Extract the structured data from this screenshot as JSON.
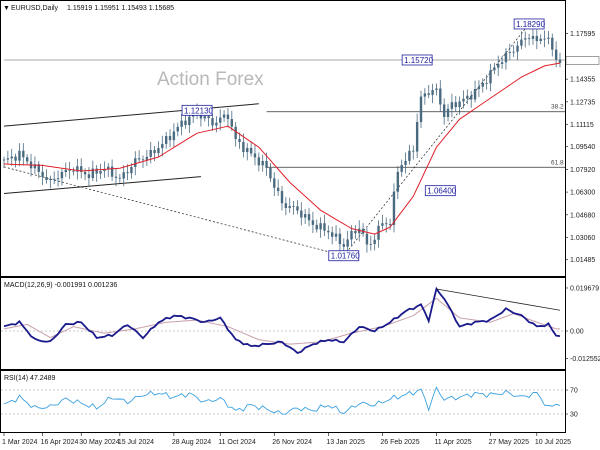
{
  "chart_data": {
    "type": "line",
    "header": {
      "symbol": "EURUSD,Daily",
      "ohlc": "1.15919 1.15951 1.15493 1.15685"
    },
    "watermark": "Action Forex",
    "price_panel": {
      "y_ticks": [
        "1.17595",
        "1.15685",
        "1.14355",
        "1.12735",
        "1.11115",
        "1.09540",
        "1.07920",
        "1.06300",
        "1.04680",
        "1.03060",
        "1.01485"
      ],
      "ylim": [
        1.006,
        1.19
      ],
      "current_price": "1.15685",
      "annotations": [
        {
          "label": "1.18290",
          "price": 1.1829,
          "date_index": 136
        },
        {
          "label": "1.15720",
          "price": 1.1572,
          "date_index": 107
        },
        {
          "label": "1.12130",
          "price": 1.1213,
          "date_index": 50
        },
        {
          "label": "1.06400",
          "price": 1.064,
          "date_index": 113
        },
        {
          "label": "1.01760",
          "price": 1.0176,
          "date_index": 88
        }
      ],
      "fib_levels": [
        {
          "label": "38.2",
          "price": 1.1203
        },
        {
          "label": "61.8",
          "price": 1.0807
        }
      ],
      "series": [
        {
          "name": "price",
          "close_anchors": [
            [
              0,
              1.085
            ],
            [
              4,
              1.09
            ],
            [
              8,
              1.08
            ],
            [
              12,
              1.07
            ],
            [
              14,
              1.075
            ],
            [
              18,
              1.08
            ],
            [
              22,
              1.075
            ],
            [
              26,
              1.08
            ],
            [
              30,
              1.072
            ],
            [
              34,
              1.085
            ],
            [
              38,
              1.09
            ],
            [
              42,
              1.1
            ],
            [
              46,
              1.112
            ],
            [
              50,
              1.12
            ],
            [
              54,
              1.112
            ],
            [
              58,
              1.118
            ],
            [
              60,
              1.1
            ],
            [
              64,
              1.09
            ],
            [
              68,
              1.08
            ],
            [
              72,
              1.055
            ],
            [
              76,
              1.05
            ],
            [
              80,
              1.04
            ],
            [
              84,
              1.035
            ],
            [
              88,
              1.025
            ],
            [
              90,
              1.033
            ],
            [
              92,
              1.038
            ],
            [
              94,
              1.025
            ],
            [
              96,
              1.03
            ],
            [
              98,
              1.042
            ],
            [
              100,
              1.04
            ],
            [
              102,
              1.08
            ],
            [
              104,
              1.085
            ],
            [
              106,
              1.095
            ],
            [
              108,
              1.13
            ],
            [
              110,
              1.135
            ],
            [
              112,
              1.135
            ],
            [
              114,
              1.118
            ],
            [
              116,
              1.125
            ],
            [
              120,
              1.13
            ],
            [
              124,
              1.14
            ],
            [
              128,
              1.155
            ],
            [
              132,
              1.165
            ],
            [
              136,
              1.175
            ],
            [
              138,
              1.17
            ],
            [
              140,
              1.175
            ],
            [
              142,
              1.165
            ],
            [
              143,
              1.158
            ],
            [
              144,
              1.157
            ]
          ]
        },
        {
          "name": "MA",
          "close_anchors": [
            [
              0,
              1.083
            ],
            [
              10,
              1.082
            ],
            [
              20,
              1.078
            ],
            [
              30,
              1.08
            ],
            [
              40,
              1.088
            ],
            [
              50,
              1.105
            ],
            [
              58,
              1.11
            ],
            [
              66,
              1.095
            ],
            [
              74,
              1.07
            ],
            [
              82,
              1.05
            ],
            [
              90,
              1.037
            ],
            [
              96,
              1.033
            ],
            [
              100,
              1.038
            ],
            [
              106,
              1.06
            ],
            [
              112,
              1.095
            ],
            [
              118,
              1.115
            ],
            [
              126,
              1.13
            ],
            [
              134,
              1.145
            ],
            [
              140,
              1.153
            ],
            [
              144,
              1.155
            ]
          ]
        }
      ]
    },
    "macd_panel": {
      "label": "MACD(12,26,9) -0.001991 0.001236",
      "y_ticks": [
        "0.019679",
        "0.00",
        "-0.012552"
      ],
      "ylim": [
        -0.016,
        0.0215
      ],
      "series": [
        {
          "name": "MACD",
          "anchors": [
            [
              0,
              0.002
            ],
            [
              4,
              0.004
            ],
            [
              8,
              -0.004
            ],
            [
              12,
              -0.005
            ],
            [
              16,
              0.003
            ],
            [
              20,
              0.004
            ],
            [
              24,
              -0.003
            ],
            [
              28,
              -0.002
            ],
            [
              32,
              0.003
            ],
            [
              36,
              -0.003
            ],
            [
              40,
              0.004
            ],
            [
              44,
              0.007
            ],
            [
              48,
              0.006
            ],
            [
              52,
              0.004
            ],
            [
              56,
              0.006
            ],
            [
              60,
              -0.004
            ],
            [
              64,
              -0.007
            ],
            [
              68,
              -0.006
            ],
            [
              72,
              -0.005
            ],
            [
              76,
              -0.01
            ],
            [
              80,
              -0.006
            ],
            [
              84,
              -0.004
            ],
            [
              88,
              -0.005
            ],
            [
              92,
              0.002
            ],
            [
              96,
              0.0
            ],
            [
              100,
              0.004
            ],
            [
              104,
              0.009
            ],
            [
              108,
              0.012
            ],
            [
              110,
              0.005
            ],
            [
              112,
              0.019
            ],
            [
              114,
              0.015
            ],
            [
              118,
              0.002
            ],
            [
              122,
              0.004
            ],
            [
              126,
              0.005
            ],
            [
              130,
              0.01
            ],
            [
              134,
              0.007
            ],
            [
              138,
              0.002
            ],
            [
              141,
              0.003
            ],
            [
              143,
              -0.002
            ]
          ]
        },
        {
          "name": "Signal",
          "anchors": [
            [
              0,
              0.001
            ],
            [
              6,
              0.003
            ],
            [
              12,
              -0.003
            ],
            [
              18,
              0.002
            ],
            [
              26,
              -0.001
            ],
            [
              34,
              0.001
            ],
            [
              42,
              0.004
            ],
            [
              50,
              0.005
            ],
            [
              58,
              0.002
            ],
            [
              66,
              -0.004
            ],
            [
              74,
              -0.006
            ],
            [
              82,
              -0.005
            ],
            [
              90,
              -0.001
            ],
            [
              98,
              0.002
            ],
            [
              106,
              0.007
            ],
            [
              112,
              0.015
            ],
            [
              118,
              0.006
            ],
            [
              126,
              0.004
            ],
            [
              132,
              0.008
            ],
            [
              138,
              0.004
            ],
            [
              143,
              0.001
            ]
          ]
        }
      ]
    },
    "rsi_panel": {
      "label": "RSI(14) 47.2489",
      "y_ticks": [
        "70",
        "30"
      ],
      "ylim": [
        0,
        100
      ],
      "series": [
        {
          "name": "RSI",
          "anchors": [
            [
              0,
              45
            ],
            [
              4,
              58
            ],
            [
              8,
              40
            ],
            [
              12,
              42
            ],
            [
              16,
              55
            ],
            [
              20,
              48
            ],
            [
              24,
              40
            ],
            [
              28,
              58
            ],
            [
              32,
              50
            ],
            [
              36,
              62
            ],
            [
              40,
              65
            ],
            [
              44,
              58
            ],
            [
              48,
              64
            ],
            [
              52,
              50
            ],
            [
              56,
              56
            ],
            [
              60,
              35
            ],
            [
              64,
              45
            ],
            [
              68,
              38
            ],
            [
              72,
              30
            ],
            [
              76,
              40
            ],
            [
              80,
              36
            ],
            [
              84,
              45
            ],
            [
              88,
              32
            ],
            [
              92,
              48
            ],
            [
              96,
              45
            ],
            [
              100,
              55
            ],
            [
              104,
              62
            ],
            [
              108,
              70
            ],
            [
              110,
              40
            ],
            [
              112,
              72
            ],
            [
              114,
              55
            ],
            [
              118,
              58
            ],
            [
              122,
              64
            ],
            [
              126,
              62
            ],
            [
              130,
              66
            ],
            [
              134,
              58
            ],
            [
              138,
              65
            ],
            [
              141,
              40
            ],
            [
              143,
              47
            ]
          ]
        }
      ]
    },
    "x_ticks": [
      {
        "label": "1 Mar 2024",
        "i": 0
      },
      {
        "label": "16 Apr 2024",
        "i": 10
      },
      {
        "label": "30 May 2024",
        "i": 20
      },
      {
        "label": "15 Jul 2024",
        "i": 30
      },
      {
        "label": "28 Aug 2024",
        "i": 44
      },
      {
        "label": "11 Oct 2024",
        "i": 56
      },
      {
        "label": "26 Nov 2024",
        "i": 70
      },
      {
        "label": "13 Jan 2025",
        "i": 84
      },
      {
        "label": "26 Feb 2025",
        "i": 98
      },
      {
        "label": "11 Apr 2025",
        "i": 112
      },
      {
        "label": "27 May 2025",
        "i": 126
      },
      {
        "label": "10 Jul 2025",
        "i": 138
      }
    ],
    "colors": {
      "price": "#4a6a80",
      "ma": "#e0202a",
      "macd": "#1a1a8c",
      "signal": "#c8a0a8",
      "rsi": "#3aa0e0",
      "fib": "#333333",
      "trend": "#222222"
    }
  }
}
